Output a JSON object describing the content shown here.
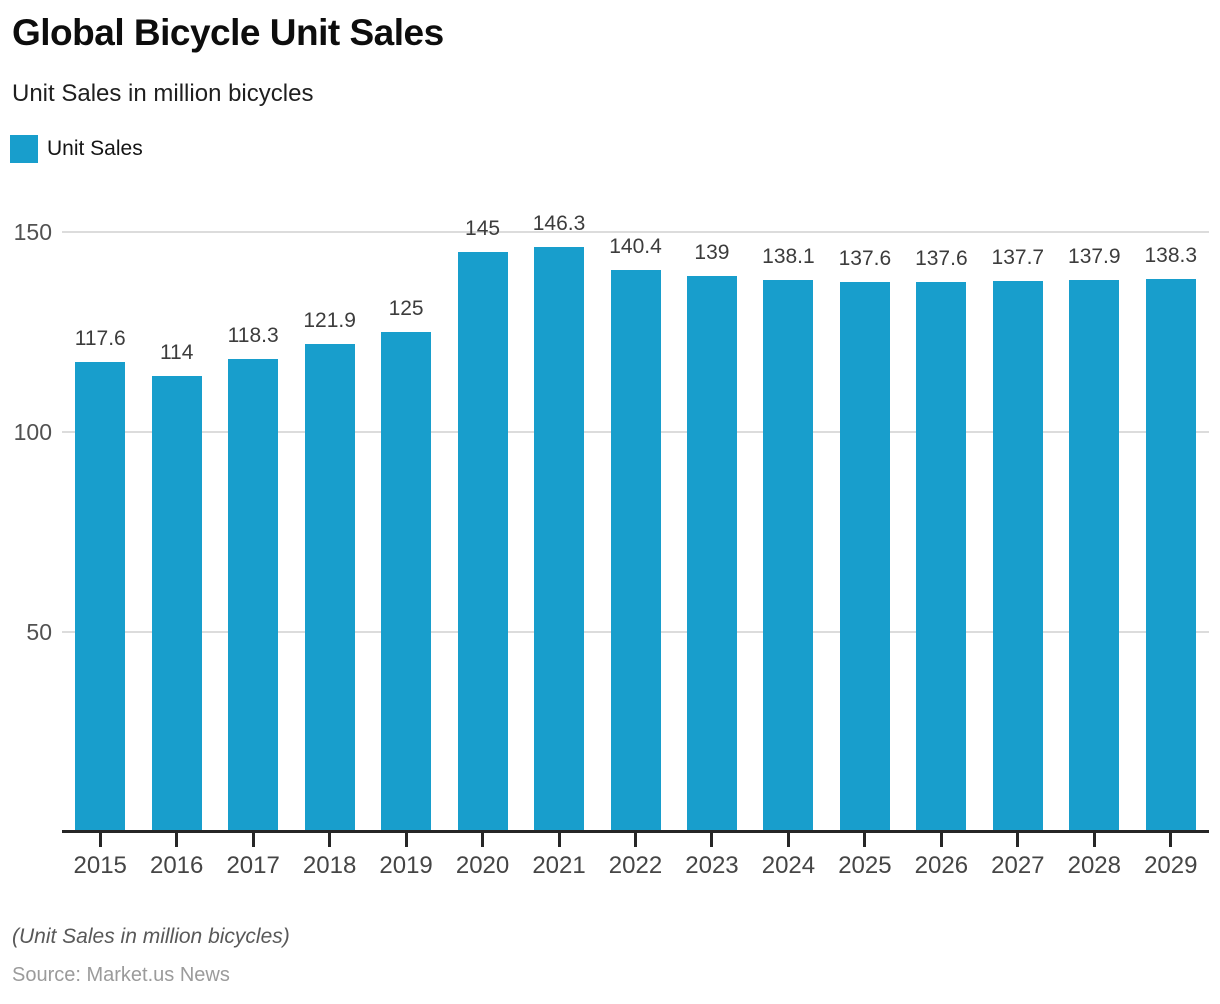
{
  "header": {
    "title": "Global Bicycle Unit Sales",
    "subtitle": "Unit Sales in million bicycles"
  },
  "legend": {
    "label": "Unit Sales"
  },
  "colors": {
    "accent": "#189ECC",
    "grid": "#dcdcdc",
    "axis": "#262626"
  },
  "chart_data": {
    "type": "bar",
    "title": "Global Bicycle Unit Sales",
    "subtitle": "Unit Sales in million bicycles",
    "categories": [
      "2015",
      "2016",
      "2017",
      "2018",
      "2019",
      "2020",
      "2021",
      "2022",
      "2023",
      "2024",
      "2025",
      "2026",
      "2027",
      "2028",
      "2029"
    ],
    "series": [
      {
        "name": "Unit Sales",
        "values": [
          117.6,
          114,
          118.3,
          121.9,
          125,
          145,
          146.3,
          140.4,
          139,
          138.1,
          137.6,
          137.6,
          137.7,
          137.9,
          138.3
        ]
      }
    ],
    "value_labels": [
      "117.6",
      "114",
      "118.3",
      "121.9",
      "125",
      "145",
      "146.3",
      "140.4",
      "139",
      "138.1",
      "137.6",
      "137.6",
      "137.7",
      "137.9",
      "138.3"
    ],
    "xlabel": "",
    "ylabel": "",
    "yticks": [
      50,
      100,
      150
    ],
    "ylim": [
      0,
      162
    ],
    "grid": true,
    "legend_position": "top-left",
    "bar_color": "#189ECC"
  },
  "footer": {
    "note": "(Unit Sales in million bicycles)",
    "source": "Source: Market.us News"
  }
}
